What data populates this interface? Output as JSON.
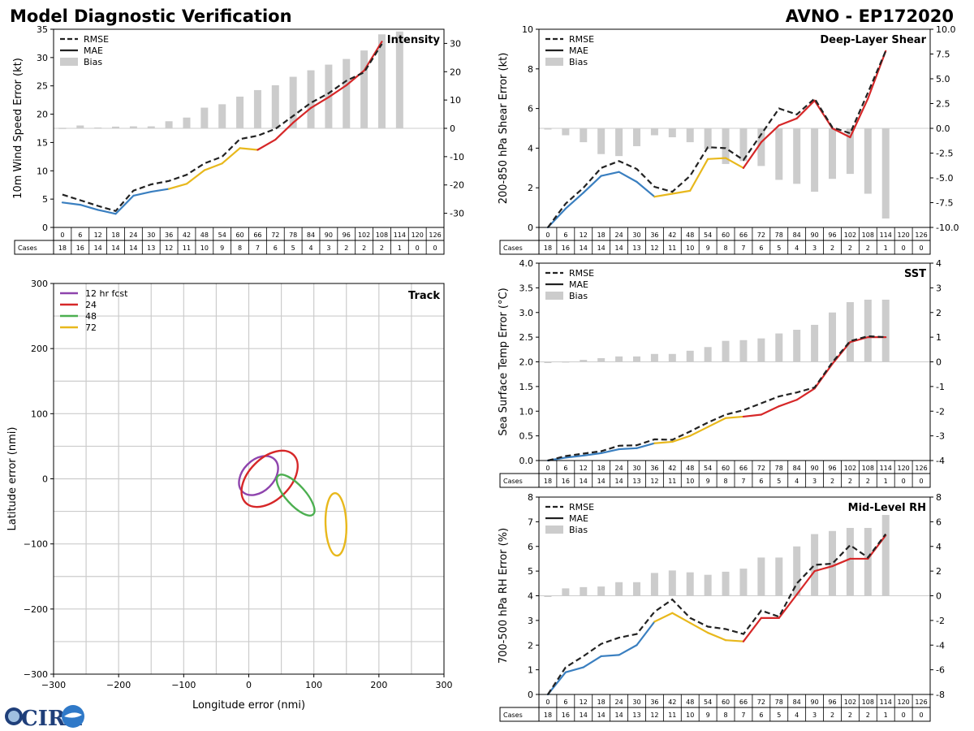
{
  "header": {
    "title": "Model Diagnostic Verification",
    "model_storm": "AVNO - EP172020"
  },
  "logo": {
    "text": "CIRA"
  },
  "colors": {
    "rmse": "#222222",
    "mae_blue": "#3a7fc0",
    "mae_yellow": "#e8b81c",
    "mae_red": "#d62728",
    "bias": "#cccccc",
    "grid": "#cccccc",
    "track_12": "#8e44ad",
    "track_24": "#d62728",
    "track_48": "#4caf50",
    "track_72": "#e8b81c"
  },
  "legend": {
    "rmse": "RMSE",
    "mae": "MAE",
    "bias": "Bias"
  },
  "table": {
    "cases_label": "Cases",
    "hours": [
      "0",
      "6",
      "12",
      "18",
      "24",
      "30",
      "36",
      "42",
      "48",
      "54",
      "60",
      "66",
      "72",
      "78",
      "84",
      "90",
      "96",
      "102",
      "108",
      "114",
      "120",
      "126"
    ],
    "cases": [
      "18",
      "16",
      "14",
      "14",
      "14",
      "13",
      "12",
      "11",
      "10",
      "9",
      "8",
      "7",
      "6",
      "5",
      "4",
      "3",
      "2",
      "2",
      "2",
      "1",
      "0",
      "0"
    ]
  },
  "chart_data": [
    {
      "id": "intensity",
      "type": "line",
      "title": "Intensity",
      "ylabel": "10m Wind Speed Error (kt)",
      "ylim": [
        0,
        35
      ],
      "y2lim": [
        -35,
        35
      ],
      "yticks": [
        0,
        5,
        10,
        15,
        20,
        25,
        30,
        35
      ],
      "y2ticks": [
        -30,
        -20,
        -10,
        0,
        10,
        20,
        30
      ],
      "x": [
        0,
        6,
        12,
        18,
        24,
        30,
        36,
        42,
        48,
        54,
        60,
        66,
        72,
        78,
        84,
        90,
        96,
        102,
        108,
        114,
        120,
        126
      ],
      "rmse": [
        5.8,
        4.8,
        3.8,
        2.9,
        6.5,
        7.6,
        8.2,
        9.3,
        11.3,
        12.5,
        15.6,
        16.2,
        17.4,
        19.7,
        22.0,
        23.7,
        25.9,
        27.4,
        32.4,
        null,
        null,
        null
      ],
      "mae": [
        4.4,
        4.0,
        3.1,
        2.4,
        5.6,
        6.3,
        6.8,
        7.7,
        10.1,
        11.3,
        14.0,
        13.7,
        15.5,
        18.5,
        21.1,
        23.0,
        25.1,
        27.7,
        32.8,
        null,
        null,
        null
      ],
      "bias": [
        0.2,
        1.0,
        0.3,
        0.6,
        0.7,
        0.7,
        2.5,
        3.8,
        7.3,
        8.5,
        11.2,
        13.5,
        15.2,
        18.2,
        20.5,
        22.5,
        24.5,
        27.5,
        33.2,
        34.2,
        null,
        null
      ]
    },
    {
      "id": "shear",
      "type": "line",
      "title": "Deep-Layer Shear",
      "ylabel": "200-850 hPa Shear Error (kt)",
      "ylim": [
        0,
        10
      ],
      "y2lim": [
        -10,
        10
      ],
      "yticks": [
        0,
        2,
        4,
        6,
        8,
        10
      ],
      "y2ticks": [
        -10.0,
        -7.5,
        -5.0,
        -2.5,
        0.0,
        2.5,
        5.0,
        7.5,
        10.0
      ],
      "x": [
        0,
        6,
        12,
        18,
        24,
        30,
        36,
        42,
        48,
        54,
        60,
        66,
        72,
        78,
        84,
        90,
        96,
        102,
        108,
        114,
        120,
        126
      ],
      "rmse": [
        0,
        1.2,
        2.0,
        3.0,
        3.35,
        2.95,
        2.05,
        1.8,
        2.6,
        4.05,
        4.0,
        3.4,
        4.7,
        6.0,
        5.7,
        6.5,
        5.05,
        4.75,
        6.8,
        8.9,
        null,
        null
      ],
      "mae": [
        0,
        0.95,
        1.75,
        2.6,
        2.8,
        2.3,
        1.55,
        1.7,
        1.85,
        3.45,
        3.5,
        3.0,
        4.3,
        5.15,
        5.5,
        6.4,
        5.0,
        4.55,
        6.5,
        8.9,
        null,
        null
      ],
      "bias": [
        0,
        -0.7,
        -1.4,
        -2.6,
        -2.8,
        -1.8,
        -0.7,
        -0.9,
        -1.4,
        -2.1,
        -3.6,
        -3.3,
        -3.8,
        -5.2,
        -5.6,
        -6.4,
        -5.1,
        -4.6,
        -6.6,
        -9.1,
        null,
        null
      ]
    },
    {
      "id": "sst",
      "type": "line",
      "title": "SST",
      "ylabel": "Sea Surface Temp Error (°C)",
      "ylim": [
        0,
        4
      ],
      "y2lim": [
        -4,
        4
      ],
      "yticks": [
        0.0,
        0.5,
        1.0,
        1.5,
        2.0,
        2.5,
        3.0,
        3.5,
        4.0
      ],
      "y2ticks": [
        -4,
        -3,
        -2,
        -1,
        0,
        1,
        2,
        3,
        4
      ],
      "x": [
        0,
        6,
        12,
        18,
        24,
        30,
        36,
        42,
        48,
        54,
        60,
        66,
        72,
        78,
        84,
        90,
        96,
        102,
        108,
        114,
        120,
        126
      ],
      "rmse": [
        0,
        0.09,
        0.14,
        0.19,
        0.3,
        0.31,
        0.43,
        0.42,
        0.59,
        0.77,
        0.93,
        1.02,
        1.16,
        1.3,
        1.38,
        1.48,
        1.99,
        2.42,
        2.52,
        2.5,
        null,
        null
      ],
      "mae": [
        0,
        0.06,
        0.1,
        0.15,
        0.23,
        0.25,
        0.35,
        0.38,
        0.5,
        0.68,
        0.86,
        0.89,
        0.93,
        1.1,
        1.23,
        1.46,
        1.96,
        2.4,
        2.5,
        2.5,
        null,
        null
      ],
      "bias": [
        0,
        0.02,
        0.08,
        0.15,
        0.22,
        0.22,
        0.32,
        0.32,
        0.45,
        0.6,
        0.85,
        0.88,
        0.95,
        1.15,
        1.3,
        1.5,
        2.0,
        2.42,
        2.52,
        2.52,
        null,
        null
      ]
    },
    {
      "id": "rh",
      "type": "line",
      "title": "Mid-Level RH",
      "ylabel": "700-500 hPa RH Error (%)",
      "ylim": [
        0,
        8
      ],
      "y2lim": [
        -8,
        8
      ],
      "yticks": [
        0,
        1,
        2,
        3,
        4,
        5,
        6,
        7,
        8
      ],
      "y2ticks": [
        -8,
        -6,
        -4,
        -2,
        0,
        2,
        4,
        6,
        8
      ],
      "x": [
        0,
        6,
        12,
        18,
        24,
        30,
        36,
        42,
        48,
        54,
        60,
        66,
        72,
        78,
        84,
        90,
        96,
        102,
        108,
        114,
        120,
        126
      ],
      "rmse": [
        0,
        1.1,
        1.55,
        2.05,
        2.3,
        2.45,
        3.35,
        3.85,
        3.1,
        2.75,
        2.65,
        2.45,
        3.4,
        3.15,
        4.5,
        5.25,
        5.3,
        6.05,
        5.55,
        6.5,
        null,
        null
      ],
      "mae": [
        0,
        0.9,
        1.1,
        1.55,
        1.6,
        2.0,
        2.95,
        3.3,
        2.9,
        2.5,
        2.2,
        2.15,
        3.1,
        3.1,
        4.05,
        5.0,
        5.2,
        5.5,
        5.5,
        6.45,
        null,
        null
      ],
      "bias": [
        0,
        0.6,
        0.7,
        0.75,
        1.1,
        1.1,
        1.85,
        2.05,
        1.9,
        1.7,
        1.95,
        2.2,
        3.1,
        3.1,
        4.0,
        5.0,
        5.25,
        5.5,
        5.5,
        6.55,
        null,
        null
      ]
    },
    {
      "id": "track",
      "type": "scatter",
      "title": "Track",
      "xlabel": "Longitude error (nmi)",
      "ylabel": "Latitude error (nmi)",
      "xlim": [
        -300,
        300
      ],
      "ylim": [
        -300,
        300
      ],
      "xticks": [
        -300,
        -200,
        -100,
        0,
        100,
        200,
        300
      ],
      "yticks": [
        -300,
        -200,
        -100,
        0,
        100,
        200,
        300
      ],
      "series": [
        {
          "name": "12 hr fcst",
          "center": [
            15,
            5
          ],
          "radii": [
            35,
            24
          ],
          "angle_deg": 45
        },
        {
          "name": "24",
          "center": [
            32,
            0
          ],
          "radii": [
            52,
            32
          ],
          "angle_deg": 45
        },
        {
          "name": "48",
          "center": [
            72,
            -25
          ],
          "radii": [
            40,
            15
          ],
          "angle_deg": -48
        },
        {
          "name": "72",
          "center": [
            134,
            -70
          ],
          "radii": [
            48,
            16
          ],
          "angle_deg": -88
        }
      ]
    }
  ]
}
